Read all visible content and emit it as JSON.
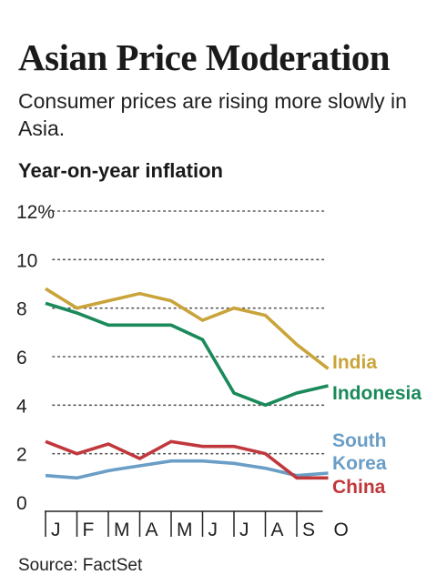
{
  "title": "Asian Price Moderation",
  "subtitle": "Consumer prices are rising more slowly in Asia.",
  "source": "Source: FactSet",
  "chart_data": {
    "type": "line",
    "ylabel": "Year-on-year inflation",
    "xlabel": "",
    "categories": [
      "J",
      "F",
      "M",
      "A",
      "M",
      "J",
      "J",
      "A",
      "S",
      "O"
    ],
    "ylim": [
      0,
      12
    ],
    "yticks": [
      0,
      2,
      4,
      6,
      8,
      10,
      12
    ],
    "ytick_labels": [
      "0",
      "2",
      "4",
      "6",
      "8",
      "10",
      "12%"
    ],
    "grid": "dotted horizontal",
    "legend": "direct labels at right end of lines",
    "series": [
      {
        "name": "India",
        "color": "#c9a43a",
        "label_lines": [
          "India"
        ],
        "values": [
          8.8,
          8.0,
          8.3,
          8.6,
          8.3,
          7.5,
          8.0,
          7.7,
          6.5,
          5.5
        ]
      },
      {
        "name": "Indonesia",
        "color": "#1a8a5a",
        "label_lines": [
          "Indonesia"
        ],
        "values": [
          8.2,
          7.8,
          7.3,
          7.3,
          7.3,
          6.7,
          4.5,
          4.0,
          4.5,
          4.8
        ]
      },
      {
        "name": "South Korea",
        "color": "#6a9ec6",
        "label_lines": [
          "South",
          "Korea"
        ],
        "values": [
          1.1,
          1.0,
          1.3,
          1.5,
          1.7,
          1.7,
          1.6,
          1.4,
          1.1,
          1.2
        ]
      },
      {
        "name": "China",
        "color": "#c0383c",
        "label_lines": [
          "China"
        ],
        "values": [
          2.5,
          2.0,
          2.4,
          1.8,
          2.5,
          2.3,
          2.3,
          2.0,
          1.0,
          1.0
        ]
      }
    ]
  }
}
